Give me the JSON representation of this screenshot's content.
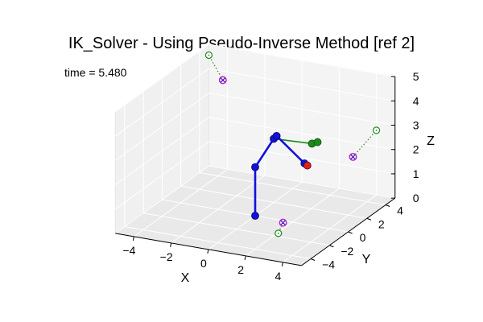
{
  "chart_data": {
    "type": "scatter",
    "projection": "3d",
    "title": "IK_Solver - Using Pseudo-Inverse Method [ref 2]",
    "annotation": "time = 5.480",
    "xlabel": "X",
    "ylabel": "Y",
    "zlabel": "Z",
    "xlim": [
      -5,
      5
    ],
    "ylim": [
      -5,
      5
    ],
    "zlim": [
      0,
      5
    ],
    "x_ticks": [
      "−4",
      "−2",
      "0",
      "2",
      "4"
    ],
    "y_ticks": [
      "−4",
      "−2",
      "0",
      "2",
      "4"
    ],
    "z_ticks": [
      "0",
      "1",
      "2",
      "3",
      "4",
      "5"
    ],
    "grid": true,
    "colors": {
      "arm_current": "#1010e0",
      "arm_target": "#1a8c1a",
      "end_effector": "#e02020",
      "target_marker": "#c020c0",
      "projection_marker": "#1a8c1a",
      "pane": "#efefef"
    },
    "arm_current": [
      {
        "x": 0.0,
        "y": 0.0,
        "z": 0.0
      },
      {
        "x": 0.0,
        "y": 0.0,
        "z": 2.0
      },
      {
        "x": 1.0,
        "y": 0.0,
        "z": 3.3
      },
      {
        "x": 1.1,
        "y": 0.1,
        "z": 3.4
      },
      {
        "x": 2.5,
        "y": 0.3,
        "z": 2.4
      }
    ],
    "end_effector": {
      "x": 2.6,
      "y": 0.4,
      "z": 2.3
    },
    "arm_target": [
      {
        "x": 1.0,
        "y": 0.0,
        "z": 3.3
      },
      {
        "x": 2.8,
        "y": 0.5,
        "z": 3.2
      },
      {
        "x": 3.1,
        "y": 0.5,
        "z": 3.3
      }
    ],
    "targets": [
      {
        "x": -4.0,
        "y": 4.5,
        "z": 3.8
      },
      {
        "x": 4.5,
        "y": 1.5,
        "z": 2.6
      },
      {
        "x": 2.5,
        "y": -2.0,
        "z": 0.6
      }
    ],
    "projections": [
      {
        "x": -4.5,
        "y": 4.0,
        "z": 4.9
      },
      {
        "x": 4.5,
        "y": 4.0,
        "z": 3.0
      },
      {
        "x": 2.5,
        "y": -2.5,
        "z": 0.3
      }
    ]
  }
}
